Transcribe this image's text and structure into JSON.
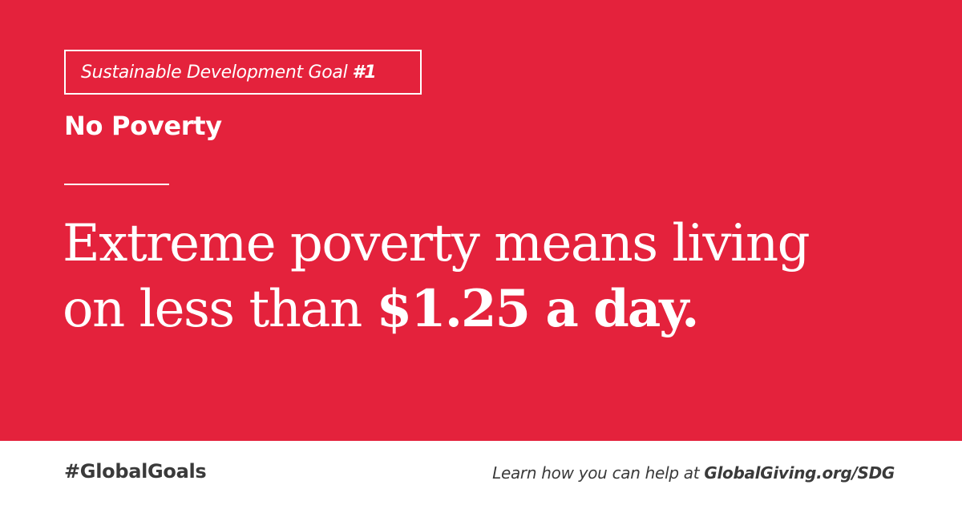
{
  "hero": {
    "goal_label": "Sustainable Development Goal",
    "goal_number": "#1",
    "goal_title": "No Poverty",
    "headline_line1": "Extreme poverty means living",
    "headline_line2_light": "on less than",
    "headline_line2_bold": "$1.25 a day."
  },
  "footer": {
    "hashtag": "#GlobalGoals",
    "learn_prefix": "Learn how you can help at",
    "learn_link": "GlobalGiving.org/SDG"
  },
  "colors": {
    "hero_background": "#e4223c",
    "footer_background": "#ffffff",
    "footer_text": "#3a3a3a",
    "hero_text": "#ffffff"
  }
}
